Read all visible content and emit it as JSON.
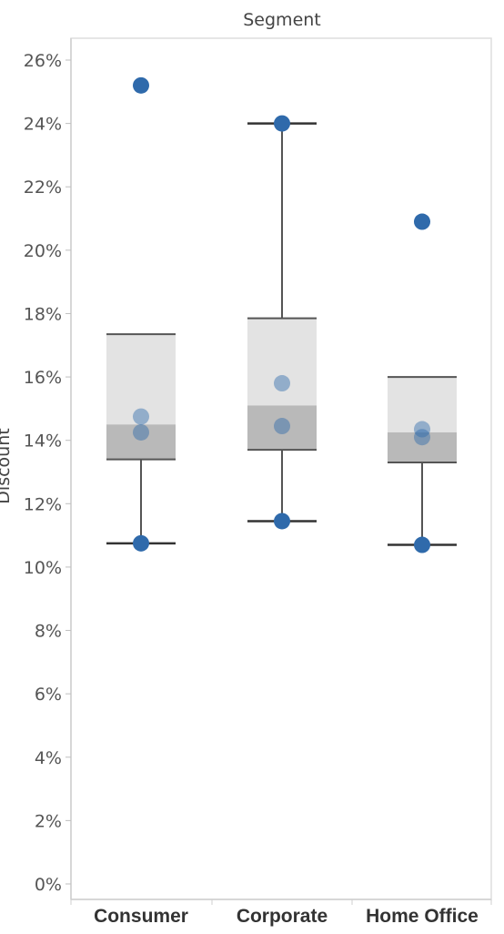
{
  "chart_data": {
    "type": "box",
    "column_header": "Segment",
    "ylabel": "Discount",
    "ylim": [
      0,
      0.27
    ],
    "yticks": [
      "0%",
      "2%",
      "4%",
      "6%",
      "8%",
      "10%",
      "12%",
      "14%",
      "16%",
      "18%",
      "20%",
      "22%",
      "24%",
      "26%"
    ],
    "ytick_values": [
      0,
      0.02,
      0.04,
      0.06,
      0.08,
      0.1,
      0.12,
      0.14,
      0.16,
      0.18,
      0.2,
      0.22,
      0.24,
      0.26
    ],
    "categories": [
      "Consumer",
      "Corporate",
      "Home Office"
    ],
    "boxes": [
      {
        "category": "Consumer",
        "whisker_low": 0.1075,
        "q1": 0.134,
        "median": 0.145,
        "q3": 0.1735,
        "whisker_high": 0.1735,
        "points": [
          0.252,
          0.1475,
          0.1425,
          0.1075
        ]
      },
      {
        "category": "Corporate",
        "whisker_low": 0.1145,
        "q1": 0.137,
        "median": 0.151,
        "q3": 0.1785,
        "whisker_high": 0.24,
        "points": [
          0.24,
          0.158,
          0.1445,
          0.1145
        ]
      },
      {
        "category": "Home Office",
        "whisker_low": 0.107,
        "q1": 0.133,
        "median": 0.1425,
        "q3": 0.16,
        "whisker_high": 0.16,
        "points": [
          0.209,
          0.1435,
          0.141,
          0.107
        ]
      }
    ],
    "colors": {
      "point": "#2f6aab",
      "box_upper": "#e3e3e3",
      "box_lower": "#b9b9b9",
      "whisker": "#555555"
    },
    "grid": false
  }
}
